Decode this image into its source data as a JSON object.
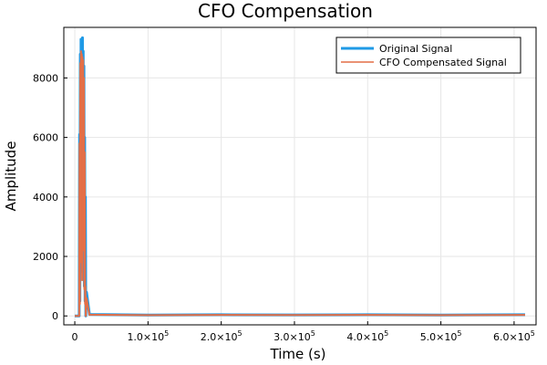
{
  "chart_data": {
    "type": "line",
    "title": "CFO Compensation",
    "xlabel": "Time (s)",
    "ylabel": "Amplitude",
    "xlim": [
      -15000,
      630000
    ],
    "ylim": [
      -300,
      9700
    ],
    "grid": true,
    "legend_position": "top-right",
    "x_ticks": [
      {
        "value": 0,
        "label": "0",
        "exp": ""
      },
      {
        "value": 100000,
        "label": "1.0×10",
        "exp": "5"
      },
      {
        "value": 200000,
        "label": "2.0×10",
        "exp": "5"
      },
      {
        "value": 300000,
        "label": "3.0×10",
        "exp": "5"
      },
      {
        "value": 400000,
        "label": "4.0×10",
        "exp": "5"
      },
      {
        "value": 500000,
        "label": "5.0×10",
        "exp": "5"
      },
      {
        "value": 600000,
        "label": "6.0×10",
        "exp": "5"
      }
    ],
    "y_ticks": [
      {
        "value": 0,
        "label": "0"
      },
      {
        "value": 2000,
        "label": "2000"
      },
      {
        "value": 4000,
        "label": "4000"
      },
      {
        "value": 6000,
        "label": "6000"
      },
      {
        "value": 8000,
        "label": "8000"
      }
    ],
    "series": [
      {
        "name": "Original Signal",
        "color": "#1f9ae6",
        "x": [
          0,
          6000,
          6500,
          7000,
          7500,
          8000,
          8500,
          9000,
          9500,
          10000,
          10500,
          11000,
          11500,
          12000,
          12500,
          13000,
          13500,
          14000,
          14500,
          15000,
          16000,
          20000,
          100000,
          200000,
          300000,
          400000,
          500000,
          615000
        ],
        "y": [
          0,
          0,
          6100,
          500,
          8800,
          2000,
          9300,
          3500,
          8700,
          1500,
          9350,
          4000,
          8900,
          2500,
          8400,
          1000,
          6000,
          500,
          4000,
          0,
          800,
          50,
          30,
          40,
          35,
          40,
          30,
          40
        ]
      },
      {
        "name": "CFO Compensated Signal",
        "color": "#e36f47",
        "x": [
          0,
          6000,
          6500,
          7000,
          7500,
          8000,
          8500,
          9000,
          9500,
          10000,
          10500,
          11000,
          11500,
          12000,
          12500,
          13000,
          13500,
          14000,
          14500,
          15000,
          16000,
          20000,
          100000,
          200000,
          300000,
          400000,
          500000,
          615000
        ],
        "y": [
          0,
          0,
          5800,
          400,
          8500,
          1800,
          8900,
          3000,
          8800,
          1200,
          8700,
          3500,
          8600,
          2200,
          8000,
          900,
          5500,
          400,
          1000,
          0,
          600,
          40,
          25,
          35,
          30,
          35,
          25,
          35
        ]
      }
    ]
  }
}
